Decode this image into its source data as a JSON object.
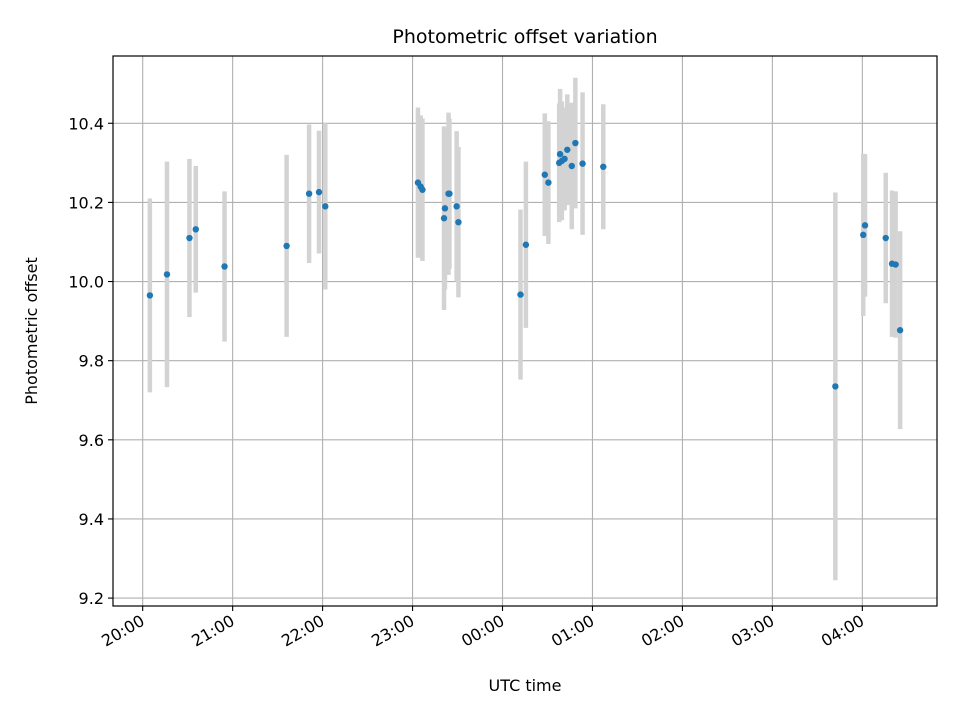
{
  "chart_data": {
    "type": "scatter",
    "title": "Photometric offset variation",
    "xlabel": "UTC time",
    "ylabel": "Photometric offset",
    "x_unit": "hours",
    "x_tick_values": [
      20,
      21,
      22,
      23,
      24,
      25,
      26,
      27,
      28
    ],
    "x_tick_labels": [
      "20:00",
      "21:00",
      "22:00",
      "23:00",
      "00:00",
      "01:00",
      "02:00",
      "03:00",
      "04:00"
    ],
    "y_ticks": [
      9.2,
      9.4,
      9.6,
      9.8,
      10.0,
      10.2,
      10.4
    ],
    "y_tick_labels": [
      "9.2",
      "9.4",
      "9.6",
      "9.8",
      "10.0",
      "10.2",
      "10.4"
    ],
    "xlim": [
      19.67,
      28.83
    ],
    "ylim": [
      9.18,
      10.57
    ],
    "grid": true,
    "colors": {
      "point": "#1f77b4",
      "errorbar": "#d3d3d3",
      "grid": "#b0b0b0",
      "axis": "#000000"
    },
    "points": [
      {
        "x": 20.08,
        "y": 9.965,
        "err": 0.245
      },
      {
        "x": 20.27,
        "y": 10.018,
        "err": 0.285
      },
      {
        "x": 20.52,
        "y": 10.11,
        "err": 0.2
      },
      {
        "x": 20.59,
        "y": 10.132,
        "err": 0.16
      },
      {
        "x": 20.91,
        "y": 10.038,
        "err": 0.19
      },
      {
        "x": 21.6,
        "y": 10.09,
        "err": 0.23
      },
      {
        "x": 21.85,
        "y": 10.222,
        "err": 0.175
      },
      {
        "x": 21.96,
        "y": 10.226,
        "err": 0.155
      },
      {
        "x": 22.03,
        "y": 10.19,
        "err": 0.21
      },
      {
        "x": 23.06,
        "y": 10.25,
        "err": 0.19
      },
      {
        "x": 23.09,
        "y": 10.24,
        "err": 0.18
      },
      {
        "x": 23.11,
        "y": 10.232,
        "err": 0.18
      },
      {
        "x": 23.35,
        "y": 10.16,
        "err": 0.232
      },
      {
        "x": 23.36,
        "y": 10.185,
        "err": 0.205
      },
      {
        "x": 23.4,
        "y": 10.222,
        "err": 0.205
      },
      {
        "x": 23.41,
        "y": 10.222,
        "err": 0.19
      },
      {
        "x": 23.49,
        "y": 10.19,
        "err": 0.19
      },
      {
        "x": 23.51,
        "y": 10.15,
        "err": 0.19
      },
      {
        "x": 24.2,
        "y": 9.967,
        "err": 0.215
      },
      {
        "x": 24.26,
        "y": 10.093,
        "err": 0.21
      },
      {
        "x": 24.47,
        "y": 10.27,
        "err": 0.155
      },
      {
        "x": 24.51,
        "y": 10.25,
        "err": 0.155
      },
      {
        "x": 24.63,
        "y": 10.3,
        "err": 0.15
      },
      {
        "x": 24.64,
        "y": 10.322,
        "err": 0.165
      },
      {
        "x": 24.66,
        "y": 10.305,
        "err": 0.15
      },
      {
        "x": 24.69,
        "y": 10.31,
        "err": 0.13
      },
      {
        "x": 24.72,
        "y": 10.333,
        "err": 0.14
      },
      {
        "x": 24.77,
        "y": 10.292,
        "err": 0.16
      },
      {
        "x": 24.81,
        "y": 10.35,
        "err": 0.165
      },
      {
        "x": 24.89,
        "y": 10.298,
        "err": 0.18
      },
      {
        "x": 25.12,
        "y": 10.29,
        "err": 0.158
      },
      {
        "x": 27.7,
        "y": 9.735,
        "err": 0.49
      },
      {
        "x": 28.01,
        "y": 10.118,
        "err": 0.205
      },
      {
        "x": 28.03,
        "y": 10.142,
        "err": 0.18
      },
      {
        "x": 28.26,
        "y": 10.11,
        "err": 0.165
      },
      {
        "x": 28.33,
        "y": 10.045,
        "err": 0.185
      },
      {
        "x": 28.37,
        "y": 10.043,
        "err": 0.185
      },
      {
        "x": 28.42,
        "y": 9.877,
        "err": 0.25
      }
    ]
  }
}
